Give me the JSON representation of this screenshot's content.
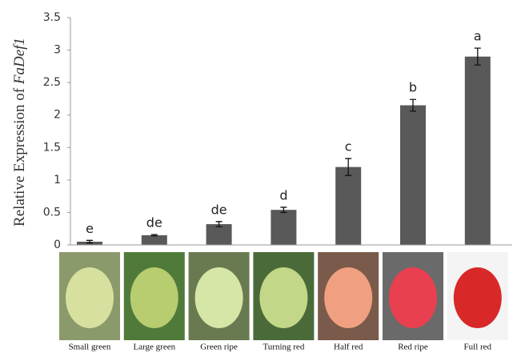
{
  "chart_data": {
    "type": "bar",
    "y_label": [
      "Relative Expression of ",
      "FaDef1"
    ],
    "categories": [
      "Small green",
      "Large green",
      "Green ripe",
      "Turning red",
      "Half red",
      "Red ripe",
      "Full red"
    ],
    "values": [
      0.05,
      0.15,
      0.32,
      0.54,
      1.2,
      2.15,
      2.9
    ],
    "errors": [
      0.02,
      0.01,
      0.04,
      0.04,
      0.13,
      0.09,
      0.13
    ],
    "annotations": [
      "e",
      "de",
      "de",
      "d",
      "c",
      "b",
      "a"
    ],
    "color": "#595959",
    "ylim": [
      0,
      3.5
    ],
    "yticks": [
      0,
      0.5,
      1,
      1.5,
      2,
      2.5,
      3,
      3.5
    ],
    "grid": false
  }
}
